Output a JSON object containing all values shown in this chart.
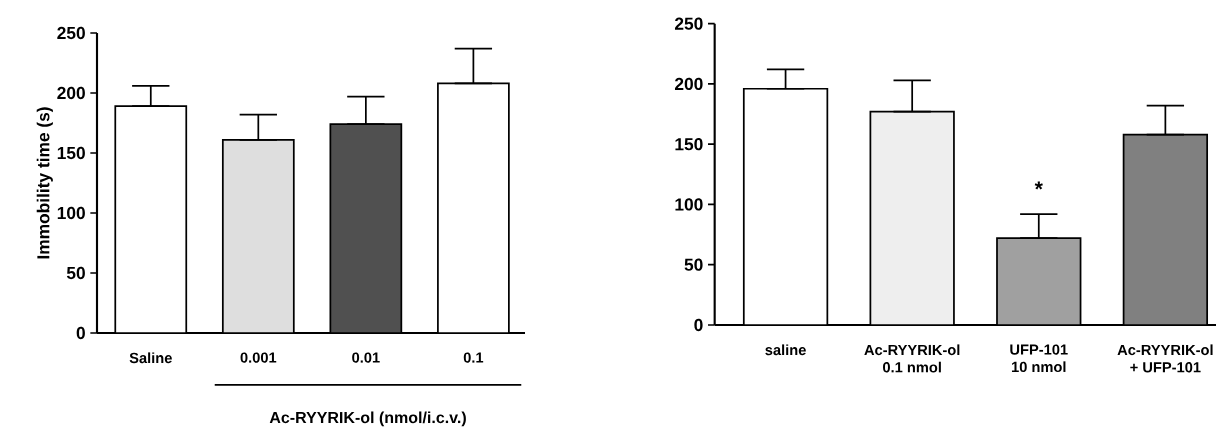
{
  "chart_data": [
    {
      "type": "bar",
      "ylabel": "Immobility time (s)",
      "xlabel": "Ac-RYYRIK-ol (nmol/i.c.v.)",
      "categories": [
        "Saline",
        "0.001",
        "0.01",
        "0.1"
      ],
      "values": [
        189,
        161,
        174,
        208
      ],
      "errors": [
        [
          189,
          206
        ],
        [
          161,
          182
        ],
        [
          174,
          197
        ],
        [
          208,
          237
        ]
      ],
      "colors": [
        "#ffffff",
        "#dedede",
        "#505050",
        "#ffffff"
      ],
      "ylim": [
        0,
        250
      ],
      "yticks": [
        0,
        50,
        100,
        150,
        200,
        250
      ]
    },
    {
      "type": "bar",
      "categories": [
        "saline",
        "Ac-RYYRIK-ol\n0.1 nmol",
        "UFP-101\n10 nmol",
        "Ac-RYYRIK-ol\n+ UFP-101"
      ],
      "values": [
        196,
        177,
        72,
        158
      ],
      "errors": [
        [
          196,
          212
        ],
        [
          177,
          203
        ],
        [
          72,
          92
        ],
        [
          158,
          182
        ]
      ],
      "colors": [
        "#ffffff",
        "#eeeeee",
        "#a0a0a0",
        "#808080"
      ],
      "annotations": [
        "*"
      ],
      "ylim": [
        0,
        250
      ],
      "yticks": [
        0,
        50,
        100,
        150,
        200,
        250
      ]
    }
  ]
}
